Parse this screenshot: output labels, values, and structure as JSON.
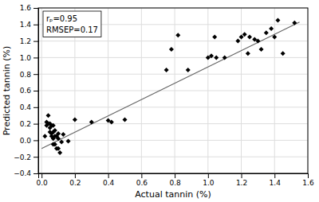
{
  "chart_data": {
    "type": "scatter",
    "xlabel": "Actual tannin (%)",
    "ylabel": "Predicted tannin (%)",
    "xlim": [
      -0.02,
      1.6
    ],
    "ylim": [
      -0.4,
      1.6
    ],
    "xticks": [
      {
        "value": 0.0,
        "label": "0.0"
      },
      0.2,
      0.4,
      0.6,
      0.8,
      {
        "value": 1.0,
        "label": "1.0"
      },
      1.2,
      1.4,
      1.6
    ],
    "yticks": [
      {
        "value": -0.4,
        "label": "−0.4"
      },
      {
        "value": -0.2,
        "label": "−0.2"
      },
      {
        "value": 0.0,
        "label": "0.0"
      },
      0.2,
      0.4,
      0.6,
      0.8,
      {
        "value": 1.0,
        "label": "1.0"
      },
      1.2,
      1.4,
      1.6
    ],
    "grid": true,
    "annotations": [
      "rₚ=0.95",
      "RMSEP=0.17"
    ],
    "series": [
      {
        "type": "scatter",
        "color": "#000000",
        "marker": "diamond",
        "x": [
          0.02,
          0.03,
          0.03,
          0.04,
          0.04,
          0.05,
          0.05,
          0.05,
          0.06,
          0.06,
          0.06,
          0.07,
          0.07,
          0.07,
          0.07,
          0.08,
          0.08,
          0.08,
          0.09,
          0.09,
          0.1,
          0.1,
          0.1,
          0.11,
          0.12,
          0.13,
          0.16,
          0.2,
          0.3,
          0.4,
          0.42,
          0.5,
          0.75,
          0.78,
          0.82,
          0.88,
          1.0,
          1.02,
          1.04,
          1.05,
          1.1,
          1.18,
          1.2,
          1.22,
          1.24,
          1.25,
          1.28,
          1.3,
          1.32,
          1.35,
          1.38,
          1.4,
          1.42,
          1.45,
          1.52
        ],
        "values": [
          0.05,
          0.18,
          0.22,
          0.2,
          0.3,
          0.1,
          0.15,
          0.2,
          0.05,
          0.08,
          0.18,
          -0.05,
          0.02,
          0.1,
          0.18,
          -0.05,
          0.05,
          0.12,
          -0.1,
          0.05,
          -0.1,
          0.02,
          0.08,
          -0.15,
          -0.02,
          0.07,
          -0.01,
          0.25,
          0.22,
          0.24,
          0.22,
          0.25,
          0.85,
          1.1,
          1.27,
          0.85,
          1.0,
          1.02,
          1.25,
          1.0,
          1.0,
          1.2,
          1.25,
          1.28,
          1.05,
          1.25,
          1.22,
          1.2,
          1.1,
          1.3,
          1.35,
          1.25,
          1.45,
          1.05,
          1.42
        ]
      },
      {
        "type": "line",
        "color": "#666666",
        "x": [
          0.0,
          1.55
        ],
        "values": [
          -0.1,
          1.43
        ]
      }
    ]
  }
}
